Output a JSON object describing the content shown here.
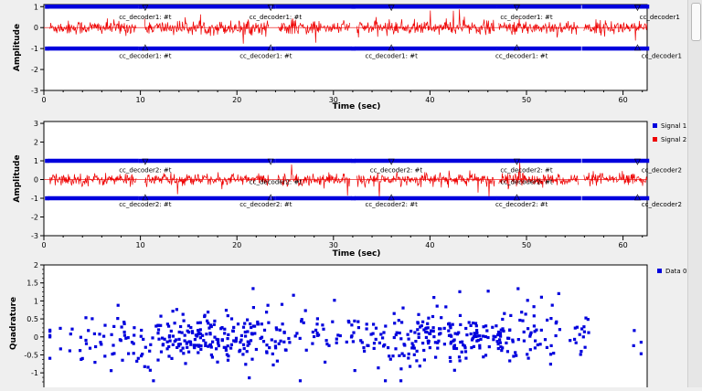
{
  "colors": {
    "signal1": "#0000dd",
    "signal2": "#ee0000",
    "scatter": "#0000dd",
    "background": "#efefef",
    "plot_bg": "#ffffff"
  },
  "chart_data": [
    {
      "type": "line",
      "title": "",
      "xlabel": "Time (sec)",
      "ylabel": "Amplitude",
      "xlim": [
        0,
        62.5
      ],
      "ylim": [
        -3,
        1.1
      ],
      "xticks": [
        "0",
        "10",
        "20",
        "30",
        "40",
        "50",
        "60"
      ],
      "yticks": [
        "-3",
        "-2",
        "-1",
        "0",
        "1"
      ],
      "series": [
        {
          "name": "Signal 1",
          "kind": "binary",
          "levels": [
            1,
            -1
          ]
        },
        {
          "name": "Signal 2",
          "kind": "noise",
          "center": 0,
          "spread": 0.3
        }
      ],
      "gaps": [
        [
          0,
          0.6
        ],
        [
          9.6,
          10.4
        ],
        [
          23.3,
          24.2
        ],
        [
          31.7,
          32.4
        ],
        [
          46.7,
          47.1
        ],
        [
          55.4,
          55.9
        ]
      ],
      "tags_above": [
        {
          "x": 10.5,
          "label": "cc_decoder1: #t"
        },
        {
          "x": 24.0,
          "label": "cc_decoder1: #t"
        },
        {
          "x": 50.0,
          "label": "cc_decoder1: #t"
        },
        {
          "x": 63.8,
          "label": "cc_decoder1"
        }
      ],
      "tags_below": [
        {
          "x": 10.5,
          "label": "cc_decoder1: #t"
        },
        {
          "x": 23.0,
          "label": "cc_decoder1: #t"
        },
        {
          "x": 36.0,
          "label": "cc_decoder1: #t"
        },
        {
          "x": 49.5,
          "label": "cc_decoder1: #t"
        },
        {
          "x": 64.0,
          "label": "cc_decoder1"
        }
      ],
      "tag_markers": [
        10.5,
        23.5,
        36.0,
        49.0,
        61.5
      ],
      "legend": "none"
    },
    {
      "type": "line",
      "title": "",
      "xlabel": "Time (sec)",
      "ylabel": "Amplitude",
      "xlim": [
        0,
        62.5
      ],
      "ylim": [
        -3,
        3.1
      ],
      "xticks": [
        "0",
        "10",
        "20",
        "30",
        "40",
        "50",
        "60"
      ],
      "yticks": [
        "-3",
        "-2",
        "-1",
        "0",
        "1",
        "2",
        "3"
      ],
      "series": [
        {
          "name": "Signal 1",
          "kind": "binary",
          "levels": [
            1,
            -1
          ]
        },
        {
          "name": "Signal 2",
          "kind": "noise",
          "center": 0,
          "spread": 0.3
        }
      ],
      "gaps": [
        [
          0,
          0.6
        ],
        [
          9.6,
          10.4
        ],
        [
          23.3,
          24.2
        ],
        [
          31.7,
          32.4
        ],
        [
          46.7,
          47.1
        ],
        [
          55.4,
          55.9
        ]
      ],
      "tags_above": [
        {
          "x": 10.5,
          "label": "cc_decoder2: #t"
        },
        {
          "x": 36.5,
          "label": "cc_decoder2: #t"
        },
        {
          "x": 50.0,
          "label": "cc_decoder2: #t"
        },
        {
          "x": 64.0,
          "label": "cc_decoder2"
        }
      ],
      "tags_mid": [
        {
          "x": 24.0,
          "label": "cc_decoder2: #t"
        },
        {
          "x": 50.0,
          "label": "cc_decoder2: #t"
        }
      ],
      "tags_below": [
        {
          "x": 10.5,
          "label": "cc_decoder2: #t"
        },
        {
          "x": 23.0,
          "label": "cc_decoder2: #t"
        },
        {
          "x": 36.0,
          "label": "cc_decoder2: #t"
        },
        {
          "x": 49.5,
          "label": "cc_decoder2: #t"
        },
        {
          "x": 64.0,
          "label": "cc_decoder2"
        }
      ],
      "tag_markers": [
        10.5,
        23.5,
        36.0,
        49.0,
        61.5
      ],
      "legend": "right",
      "legend_entries": [
        "Signal 1",
        "Signal 2"
      ]
    },
    {
      "type": "scatter",
      "title": "",
      "xlabel": "",
      "ylabel": "Quadrature",
      "xlim": [
        -2,
        2
      ],
      "ylim": [
        -1.25,
        2
      ],
      "yticks": [
        "-1",
        "-0.5",
        "0",
        "0.5",
        "1",
        "1.5",
        "2"
      ],
      "series": [
        {
          "name": "Data 0",
          "count": 600,
          "spread_y": 0.35
        }
      ],
      "legend": "right",
      "legend_entries": [
        "Data 0"
      ]
    }
  ]
}
